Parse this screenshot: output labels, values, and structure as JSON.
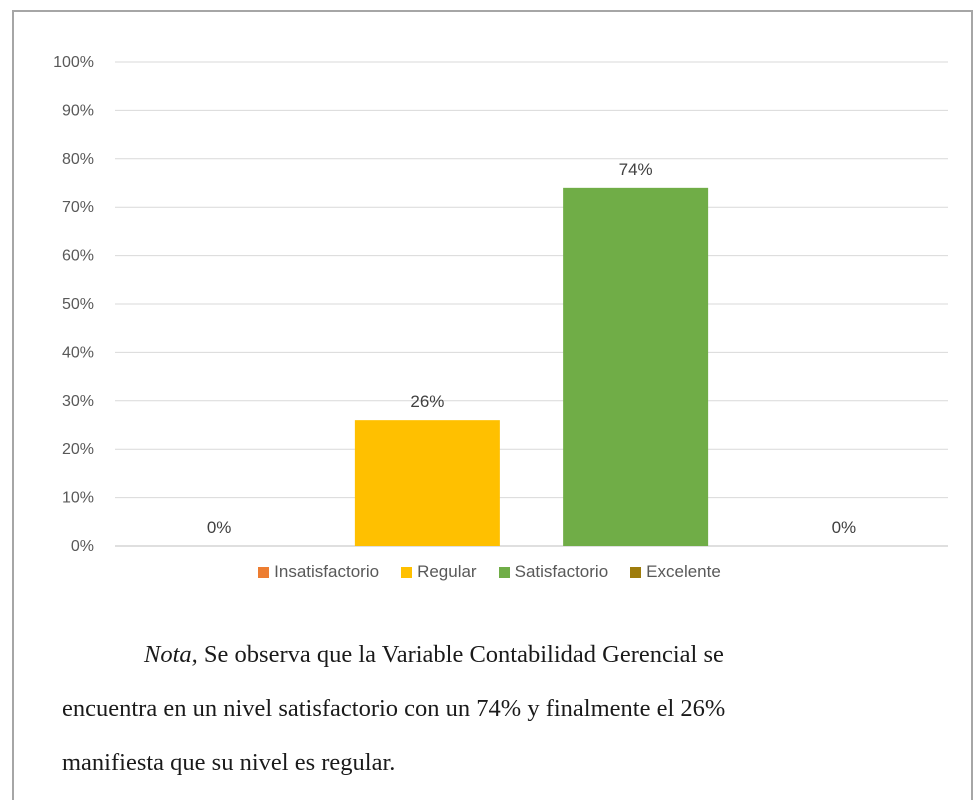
{
  "chart_data": {
    "type": "bar",
    "categories": [
      "Insatisfactorio",
      "Regular",
      "Satisfactorio",
      "Excelente"
    ],
    "values": [
      0,
      26,
      74,
      0
    ],
    "data_labels": [
      "0%",
      "26%",
      "74%",
      "0%"
    ],
    "colors": [
      "#ed7d31",
      "#ffc000",
      "#70ad47",
      "#9e7c0c"
    ],
    "ylim": [
      0,
      100
    ],
    "yticks": [
      "0%",
      "10%",
      "20%",
      "30%",
      "40%",
      "50%",
      "60%",
      "70%",
      "80%",
      "90%",
      "100%"
    ],
    "grid": true,
    "legend_position": "bottom"
  },
  "note": {
    "label": "Nota,",
    "line1": " Se observa que la Variable Contabilidad Gerencial se",
    "line2": "encuentra en un nivel satisfactorio con un 74% y finalmente el 26%",
    "line3": "manifiesta que su nivel es regular."
  }
}
